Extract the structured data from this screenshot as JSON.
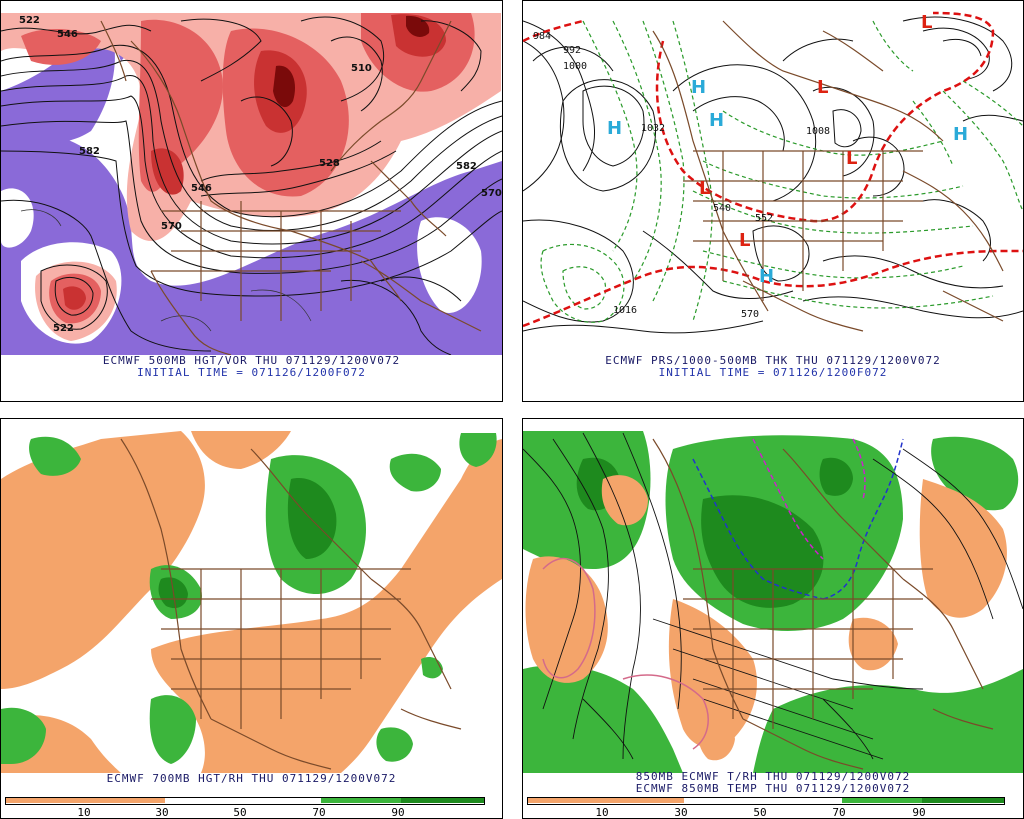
{
  "panels": [
    {
      "id": "500mb",
      "caption": "ECMWF 500MB HGT/VOR THU 071129/1200V072",
      "initial": "INITIAL TIME = 071126/1200F072",
      "contour_labels": [
        "522",
        "546",
        "510",
        "528",
        "546",
        "582",
        "582",
        "570",
        "570",
        "522"
      ]
    },
    {
      "id": "prs-thk",
      "caption": "ECMWF PRS/1000-500MB THK THU 071129/1200V072",
      "initial": "INITIAL TIME = 071126/1200F072",
      "contour_labels": [
        "984",
        "992",
        "1000",
        "1032",
        "1008",
        "1016",
        "540",
        "552",
        "570"
      ],
      "pressure_centers": [
        "H",
        "H",
        "H",
        "H",
        "H",
        "L",
        "L",
        "L",
        "L",
        "L"
      ]
    },
    {
      "id": "700mb",
      "caption": "ECMWF 700MB HGT/RH THU 071129/1200V072",
      "scale_ticks": [
        "10",
        "30",
        "50",
        "70",
        "90"
      ]
    },
    {
      "id": "850mb",
      "caption": "850MB ECMWF T/RH THU 071129/1200V072",
      "caption2": "ECMWF 850MB TEMP THU 071129/1200V072",
      "scale_ticks": [
        "10",
        "30",
        "50",
        "70",
        "90"
      ]
    }
  ],
  "colors": {
    "vorticity_red": "#d84a4a",
    "vorticity_dark": "#7a0a0a",
    "vorticity_neg": "#8a6ad8",
    "map_border": "#7a4a2a",
    "rh_dry": "#f4a46a",
    "rh_moist": "#3cb53c",
    "rh_very_moist": "#1e8a1e",
    "high_center": "#2aaad8",
    "low_center": "#dd2211",
    "thickness_dash": "#dd1111",
    "thickness_green": "#2a9a2a"
  }
}
